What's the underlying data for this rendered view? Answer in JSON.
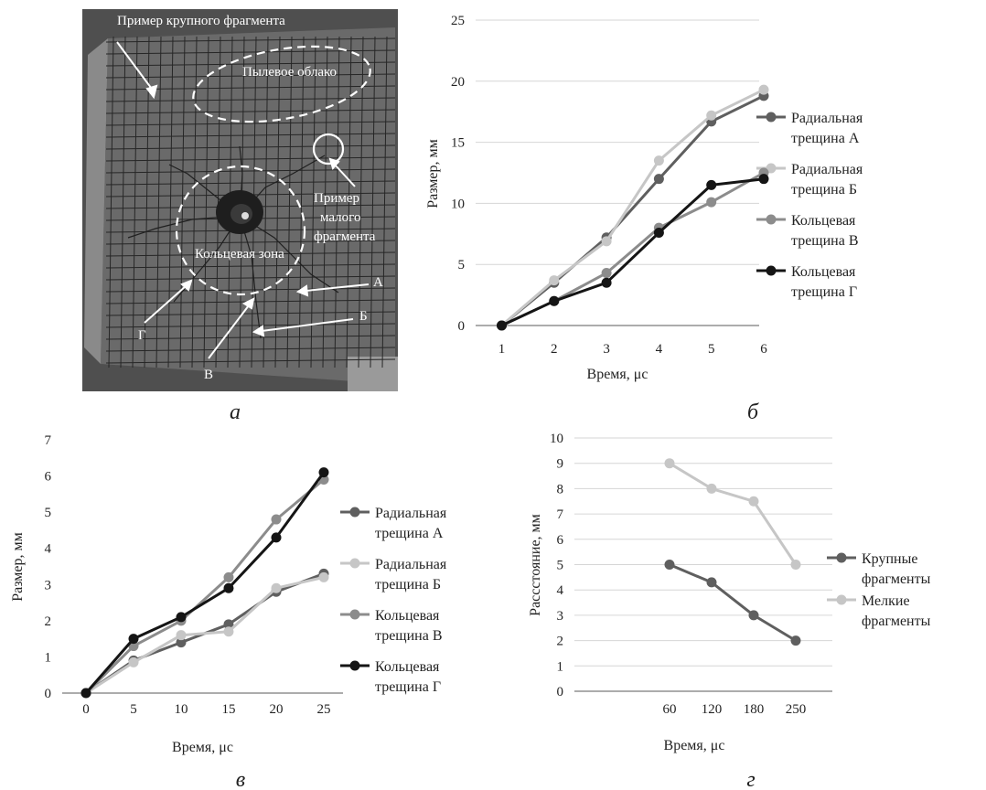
{
  "panels": {
    "a": "а",
    "b": "б",
    "c": "в",
    "d": "г"
  },
  "photo": {
    "labels": {
      "large_fragment": "Пример крупного фрагмента",
      "dust_cloud": "Пылевое облако",
      "small_fragment_1": "Пример",
      "small_fragment_2": "малого",
      "small_fragment_3": "фрагмента",
      "ring_zone": "Кольцевая зона",
      "A": "А",
      "B": "Б",
      "V": "В",
      "G": "Г"
    },
    "colors": {
      "panel": "#4f4f4f",
      "board": "#6a6a6a",
      "grid": "#262626",
      "annotation": "#ffffff"
    }
  },
  "colors": {
    "radial_a": "#5f5f5f",
    "radial_b": "#c6c6c6",
    "ring_v": "#8c8c8c",
    "ring_g": "#151515",
    "large": "#5f5f5f",
    "small": "#c6c6c6",
    "gridline": "#d6d6d6",
    "axis": "#7a7a7a"
  },
  "chart_data": [
    {
      "id": "b",
      "type": "line",
      "xlabel": "Время, μс",
      "ylabel": "Размер, мм",
      "categories": [
        "1",
        "2",
        "3",
        "4",
        "5",
        "6"
      ],
      "ylim": [
        0,
        25
      ],
      "yticks": [
        0,
        5,
        10,
        15,
        20,
        25
      ],
      "grid": true,
      "legend_position": "right",
      "series": [
        {
          "name_lines": [
            "Радиальная",
            "трещина А"
          ],
          "color_key": "radial_a",
          "values": [
            0,
            3.5,
            7.2,
            12.0,
            16.7,
            18.8
          ]
        },
        {
          "name_lines": [
            "Радиальная",
            "трещина Б"
          ],
          "color_key": "radial_b",
          "values": [
            0,
            3.7,
            6.9,
            13.5,
            17.2,
            19.3
          ]
        },
        {
          "name_lines": [
            "Кольцевая",
            "трещина В"
          ],
          "color_key": "ring_v",
          "values": [
            0,
            2.0,
            4.3,
            8.0,
            10.1,
            12.5
          ]
        },
        {
          "name_lines": [
            "Кольцевая",
            "трещина Г"
          ],
          "color_key": "ring_g",
          "values": [
            0,
            2.0,
            3.5,
            7.6,
            11.5,
            12.0
          ]
        }
      ]
    },
    {
      "id": "c",
      "type": "line",
      "xlabel": "Время, μс",
      "ylabel": "Размер, мм",
      "categories": [
        "0",
        "5",
        "10",
        "15",
        "20",
        "25"
      ],
      "ylim": [
        0,
        7
      ],
      "yticks": [
        0,
        1,
        2,
        3,
        4,
        5,
        6,
        7
      ],
      "grid": false,
      "legend_position": "right",
      "series": [
        {
          "name_lines": [
            "Радиальная",
            "трещина А"
          ],
          "color_key": "radial_a",
          "values": [
            0,
            0.9,
            1.4,
            1.9,
            2.8,
            3.3
          ]
        },
        {
          "name_lines": [
            "Радиальная",
            "трещина Б"
          ],
          "color_key": "radial_b",
          "values": [
            0,
            0.85,
            1.6,
            1.7,
            2.9,
            3.2
          ]
        },
        {
          "name_lines": [
            "Кольцевая",
            "трещина В"
          ],
          "color_key": "ring_v",
          "values": [
            0,
            1.3,
            2.0,
            3.2,
            4.8,
            5.9
          ]
        },
        {
          "name_lines": [
            "Кольцевая",
            "трещина Г"
          ],
          "color_key": "ring_g",
          "values": [
            0,
            1.5,
            2.1,
            2.9,
            4.3,
            6.1
          ]
        }
      ]
    },
    {
      "id": "d",
      "type": "line",
      "xlabel": "Время, μс",
      "ylabel": "Рассстояние, мм",
      "categories": [
        "60",
        "120",
        "180",
        "250"
      ],
      "category_slots": 6,
      "ylim": [
        0,
        10
      ],
      "yticks": [
        0,
        1,
        2,
        3,
        4,
        5,
        6,
        7,
        8,
        9,
        10
      ],
      "grid": true,
      "legend_position": "right",
      "series": [
        {
          "name_lines": [
            "Крупные",
            "фрагменты"
          ],
          "color_key": "large",
          "values": [
            5,
            4.3,
            3,
            2
          ]
        },
        {
          "name_lines": [
            "Мелкие",
            "фрагменты"
          ],
          "color_key": "small",
          "values": [
            9,
            8,
            7.5,
            5
          ]
        }
      ]
    }
  ]
}
